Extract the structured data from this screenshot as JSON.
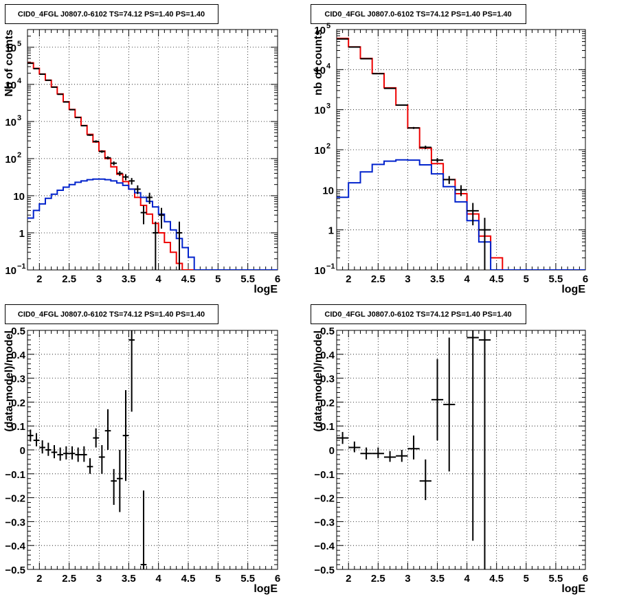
{
  "colors": {
    "data": "#000000",
    "total_model": "#ee0000",
    "source_model": "#0022cc",
    "grid": "#000000"
  },
  "chart_data": [
    {
      "type": "histogram",
      "title": "CID0_4FGL J0807.0-6102 TS=74.12 PS=1.40 PS=1.40",
      "xlabel": "logE",
      "ylabel": "Nb of counts",
      "xlim": [
        1.8,
        6.0
      ],
      "ylim": [
        0.1,
        300000
      ],
      "log_y": true,
      "grid": true,
      "x_ticks": [
        "2",
        "2.5",
        "3",
        "3.5",
        "4",
        "4.5",
        "5",
        "5.5",
        "6"
      ],
      "y_ticks": [
        {
          "v": 0.1,
          "base": "10",
          "exp": "−1"
        },
        {
          "v": 1,
          "base": "1",
          "exp": ""
        },
        {
          "v": 10,
          "base": "10",
          "exp": ""
        },
        {
          "v": 100,
          "base": "10",
          "exp": "2"
        },
        {
          "v": 1000,
          "base": "10",
          "exp": "3"
        },
        {
          "v": 10000,
          "base": "10",
          "exp": "4"
        },
        {
          "v": 100000,
          "base": "10",
          "exp": "5"
        }
      ],
      "bin_width": 0.1,
      "x_start": 1.8,
      "series": [
        {
          "kind": "total",
          "values": [
            38000,
            27000,
            19000,
            13000,
            8500,
            5500,
            3400,
            2100,
            1300,
            780,
            450,
            280,
            160,
            100,
            60,
            38,
            24,
            15,
            9,
            5.5,
            3.2,
            1.8,
            1.0,
            0.55,
            0.3,
            0.15,
            0.1,
            0.1,
            0.1,
            0.1,
            0.1,
            0.1,
            0.1,
            0.1,
            0.1,
            0.1,
            0.1,
            0.1,
            0.1,
            0.1,
            0.1,
            0.1
          ]
        },
        {
          "kind": "source",
          "values": [
            2.5,
            4,
            6,
            8.5,
            11,
            14,
            17,
            20,
            23,
            25,
            27,
            28,
            28,
            27,
            25,
            22,
            19,
            15,
            12,
            9,
            7,
            5,
            3.2,
            2,
            1.2,
            0.7,
            0.4,
            0.22,
            0.1,
            0.1,
            0.1,
            0.1,
            0.1,
            0.1,
            0.1,
            0.1,
            0.1,
            0.1,
            0.1,
            0.1,
            0.1,
            0.1
          ]
        }
      ],
      "data_points": [
        {
          "x": 1.85,
          "y": 37000,
          "lo": 36600,
          "hi": 37400
        },
        {
          "x": 1.95,
          "y": 26500,
          "lo": 26200,
          "hi": 26800
        },
        {
          "x": 2.05,
          "y": 18800,
          "lo": 18500,
          "hi": 19100
        },
        {
          "x": 2.15,
          "y": 12900,
          "lo": 12700,
          "hi": 13100
        },
        {
          "x": 2.25,
          "y": 8400,
          "lo": 8300,
          "hi": 8500
        },
        {
          "x": 2.35,
          "y": 5400,
          "lo": 5300,
          "hi": 5500
        },
        {
          "x": 2.45,
          "y": 3350,
          "lo": 3290,
          "hi": 3410
        },
        {
          "x": 2.55,
          "y": 2080,
          "lo": 2030,
          "hi": 2130
        },
        {
          "x": 2.65,
          "y": 1280,
          "lo": 1240,
          "hi": 1320
        },
        {
          "x": 2.75,
          "y": 770,
          "lo": 740,
          "hi": 800
        },
        {
          "x": 2.85,
          "y": 430,
          "lo": 410,
          "hi": 450
        },
        {
          "x": 2.95,
          "y": 290,
          "lo": 270,
          "hi": 310
        },
        {
          "x": 3.05,
          "y": 155,
          "lo": 143,
          "hi": 167
        },
        {
          "x": 3.15,
          "y": 105,
          "lo": 95,
          "hi": 115
        },
        {
          "x": 3.25,
          "y": 75,
          "lo": 66,
          "hi": 84
        },
        {
          "x": 3.35,
          "y": 40,
          "lo": 34,
          "hi": 46
        },
        {
          "x": 3.45,
          "y": 32,
          "lo": 26,
          "hi": 38
        },
        {
          "x": 3.55,
          "y": 25,
          "lo": 20,
          "hi": 30
        },
        {
          "x": 3.65,
          "y": 15,
          "lo": 11,
          "hi": 19
        },
        {
          "x": 3.75,
          "y": 3.5,
          "lo": 1.7,
          "hi": 5.4
        },
        {
          "x": 3.85,
          "y": 9,
          "lo": 6,
          "hi": 12
        },
        {
          "x": 3.95,
          "y": 1.0,
          "lo": 0.1,
          "hi": 2.0
        },
        {
          "x": 4.05,
          "y": 3,
          "lo": 1.3,
          "hi": 4.7
        },
        {
          "x": 4.35,
          "y": 1.0,
          "lo": 0.1,
          "hi": 2.0
        }
      ]
    },
    {
      "type": "histogram",
      "title": "CID0_4FGL J0807.0-6102 TS=74.12 PS=1.40 PS=1.40",
      "xlabel": "logE",
      "ylabel": "nb of counts",
      "xlim": [
        1.8,
        6.0
      ],
      "ylim": [
        0.1,
        100000
      ],
      "log_y": true,
      "grid": true,
      "x_ticks": [
        "2",
        "2.5",
        "3",
        "3.5",
        "4",
        "4.5",
        "5",
        "5.5",
        "6"
      ],
      "y_ticks": [
        {
          "v": 0.1,
          "base": "10",
          "exp": "−1"
        },
        {
          "v": 1,
          "base": "1",
          "exp": ""
        },
        {
          "v": 10,
          "base": "10",
          "exp": ""
        },
        {
          "v": 100,
          "base": "10",
          "exp": "2"
        },
        {
          "v": 1000,
          "base": "10",
          "exp": "3"
        },
        {
          "v": 10000,
          "base": "10",
          "exp": "4"
        },
        {
          "v": 100000,
          "base": "10",
          "exp": "5"
        }
      ],
      "bin_width": 0.2,
      "x_start": 1.8,
      "series": [
        {
          "kind": "total",
          "values": [
            60000,
            37000,
            19000,
            8000,
            3500,
            1300,
            350,
            110,
            45,
            18,
            8,
            2.5,
            0.7,
            0.2,
            0.1,
            0.1,
            0.1,
            0.1,
            0.1,
            0.1,
            0.1
          ]
        },
        {
          "kind": "source",
          "values": [
            6.5,
            15,
            28,
            43,
            52,
            56,
            55,
            42,
            25,
            12,
            5,
            1.7,
            0.5,
            0.1,
            0.1,
            0.1,
            0.1,
            0.1,
            0.1,
            0.1,
            0.1
          ]
        }
      ],
      "data_points": [
        {
          "x": 1.9,
          "y": 58000,
          "lo": 57700,
          "hi": 58300
        },
        {
          "x": 2.1,
          "y": 36500,
          "lo": 36300,
          "hi": 36700
        },
        {
          "x": 2.3,
          "y": 18700,
          "lo": 18500,
          "hi": 18900
        },
        {
          "x": 2.5,
          "y": 7900,
          "lo": 7800,
          "hi": 8000
        },
        {
          "x": 2.7,
          "y": 3400,
          "lo": 3340,
          "hi": 3460
        },
        {
          "x": 2.9,
          "y": 1300,
          "lo": 1260,
          "hi": 1340
        },
        {
          "x": 3.1,
          "y": 350,
          "lo": 330,
          "hi": 370
        },
        {
          "x": 3.3,
          "y": 115,
          "lo": 104,
          "hi": 126
        },
        {
          "x": 3.5,
          "y": 55,
          "lo": 48,
          "hi": 62
        },
        {
          "x": 3.7,
          "y": 18,
          "lo": 14,
          "hi": 22
        },
        {
          "x": 3.9,
          "y": 10,
          "lo": 7,
          "hi": 13
        },
        {
          "x": 4.1,
          "y": 3,
          "lo": 1.3,
          "hi": 4.7
        },
        {
          "x": 4.3,
          "y": 1.0,
          "lo": 0.1,
          "hi": 2.0
        }
      ]
    },
    {
      "type": "scatter",
      "title": "CID0_4FGL J0807.0-6102 TS=74.12 PS=1.40 PS=1.40",
      "xlabel": "logE",
      "ylabel": "(data-model)/model",
      "xlim": [
        1.8,
        6.0
      ],
      "ylim": [
        -0.5,
        0.5
      ],
      "log_y": false,
      "grid": true,
      "x_ticks": [
        "2",
        "2.5",
        "3",
        "3.5",
        "4",
        "4.5",
        "5",
        "5.5",
        "6"
      ],
      "y_ticks": [
        "−0.5",
        "−0.4",
        "−0.3",
        "−0.2",
        "−0.1",
        "0",
        "0.1",
        "0.2",
        "0.3",
        "0.4",
        "0.5"
      ],
      "bin_width": 0.1,
      "data_points": [
        {
          "x": 1.85,
          "y": 0.06,
          "lo": 0.035,
          "hi": 0.085
        },
        {
          "x": 1.95,
          "y": 0.04,
          "lo": 0.015,
          "hi": 0.07
        },
        {
          "x": 2.05,
          "y": 0.01,
          "lo": -0.015,
          "hi": 0.04
        },
        {
          "x": 2.15,
          "y": 0.0,
          "lo": -0.025,
          "hi": 0.03
        },
        {
          "x": 2.25,
          "y": -0.01,
          "lo": -0.035,
          "hi": 0.02
        },
        {
          "x": 2.35,
          "y": -0.02,
          "lo": -0.045,
          "hi": 0.01
        },
        {
          "x": 2.45,
          "y": -0.015,
          "lo": -0.04,
          "hi": 0.015
        },
        {
          "x": 2.55,
          "y": -0.015,
          "lo": -0.04,
          "hi": 0.015
        },
        {
          "x": 2.65,
          "y": -0.02,
          "lo": -0.05,
          "hi": 0.01
        },
        {
          "x": 2.75,
          "y": -0.02,
          "lo": -0.05,
          "hi": 0.015
        },
        {
          "x": 2.85,
          "y": -0.07,
          "lo": -0.1,
          "hi": -0.035
        },
        {
          "x": 2.95,
          "y": 0.05,
          "lo": 0.01,
          "hi": 0.09
        },
        {
          "x": 3.05,
          "y": -0.03,
          "lo": -0.1,
          "hi": 0.02
        },
        {
          "x": 3.15,
          "y": 0.08,
          "lo": 0.0,
          "hi": 0.17
        },
        {
          "x": 3.25,
          "y": -0.13,
          "lo": -0.23,
          "hi": -0.08
        },
        {
          "x": 3.35,
          "y": -0.12,
          "lo": -0.26,
          "hi": 0.0
        },
        {
          "x": 3.45,
          "y": 0.06,
          "lo": -0.13,
          "hi": 0.25
        },
        {
          "x": 3.55,
          "y": 0.46,
          "lo": 0.16,
          "hi": 0.5
        },
        {
          "x": 3.75,
          "y": -0.48,
          "lo": -0.5,
          "hi": -0.17
        }
      ]
    },
    {
      "type": "scatter",
      "title": "CID0_4FGL J0807.0-6102 TS=74.12 PS=1.40 PS=1.40",
      "xlabel": "logE",
      "ylabel": "(data-model)/model",
      "xlim": [
        1.8,
        6.0
      ],
      "ylim": [
        -0.5,
        0.5
      ],
      "log_y": false,
      "grid": true,
      "x_ticks": [
        "2",
        "2.5",
        "3",
        "3.5",
        "4",
        "4.5",
        "5",
        "5.5",
        "6"
      ],
      "y_ticks": [
        "−0.5",
        "−0.4",
        "−0.3",
        "−0.2",
        "−0.1",
        "0",
        "0.1",
        "0.2",
        "0.3",
        "0.4",
        "0.5"
      ],
      "bin_width": 0.2,
      "data_points": [
        {
          "x": 1.9,
          "y": 0.05,
          "lo": 0.025,
          "hi": 0.075
        },
        {
          "x": 2.1,
          "y": 0.01,
          "lo": -0.01,
          "hi": 0.035
        },
        {
          "x": 2.3,
          "y": -0.015,
          "lo": -0.04,
          "hi": 0.01
        },
        {
          "x": 2.5,
          "y": -0.015,
          "lo": -0.035,
          "hi": 0.01
        },
        {
          "x": 2.7,
          "y": -0.03,
          "lo": -0.05,
          "hi": -0.005
        },
        {
          "x": 2.9,
          "y": -0.025,
          "lo": -0.05,
          "hi": 0.0
        },
        {
          "x": 3.1,
          "y": 0.005,
          "lo": -0.04,
          "hi": 0.06
        },
        {
          "x": 3.3,
          "y": -0.13,
          "lo": -0.21,
          "hi": -0.04
        },
        {
          "x": 3.5,
          "y": 0.21,
          "lo": 0.04,
          "hi": 0.38
        },
        {
          "x": 3.7,
          "y": 0.19,
          "lo": -0.09,
          "hi": 0.47
        },
        {
          "x": 4.1,
          "y": 0.47,
          "lo": -0.38,
          "hi": 0.5
        },
        {
          "x": 4.3,
          "y": 0.46,
          "lo": -0.5,
          "hi": 0.5
        }
      ]
    }
  ]
}
